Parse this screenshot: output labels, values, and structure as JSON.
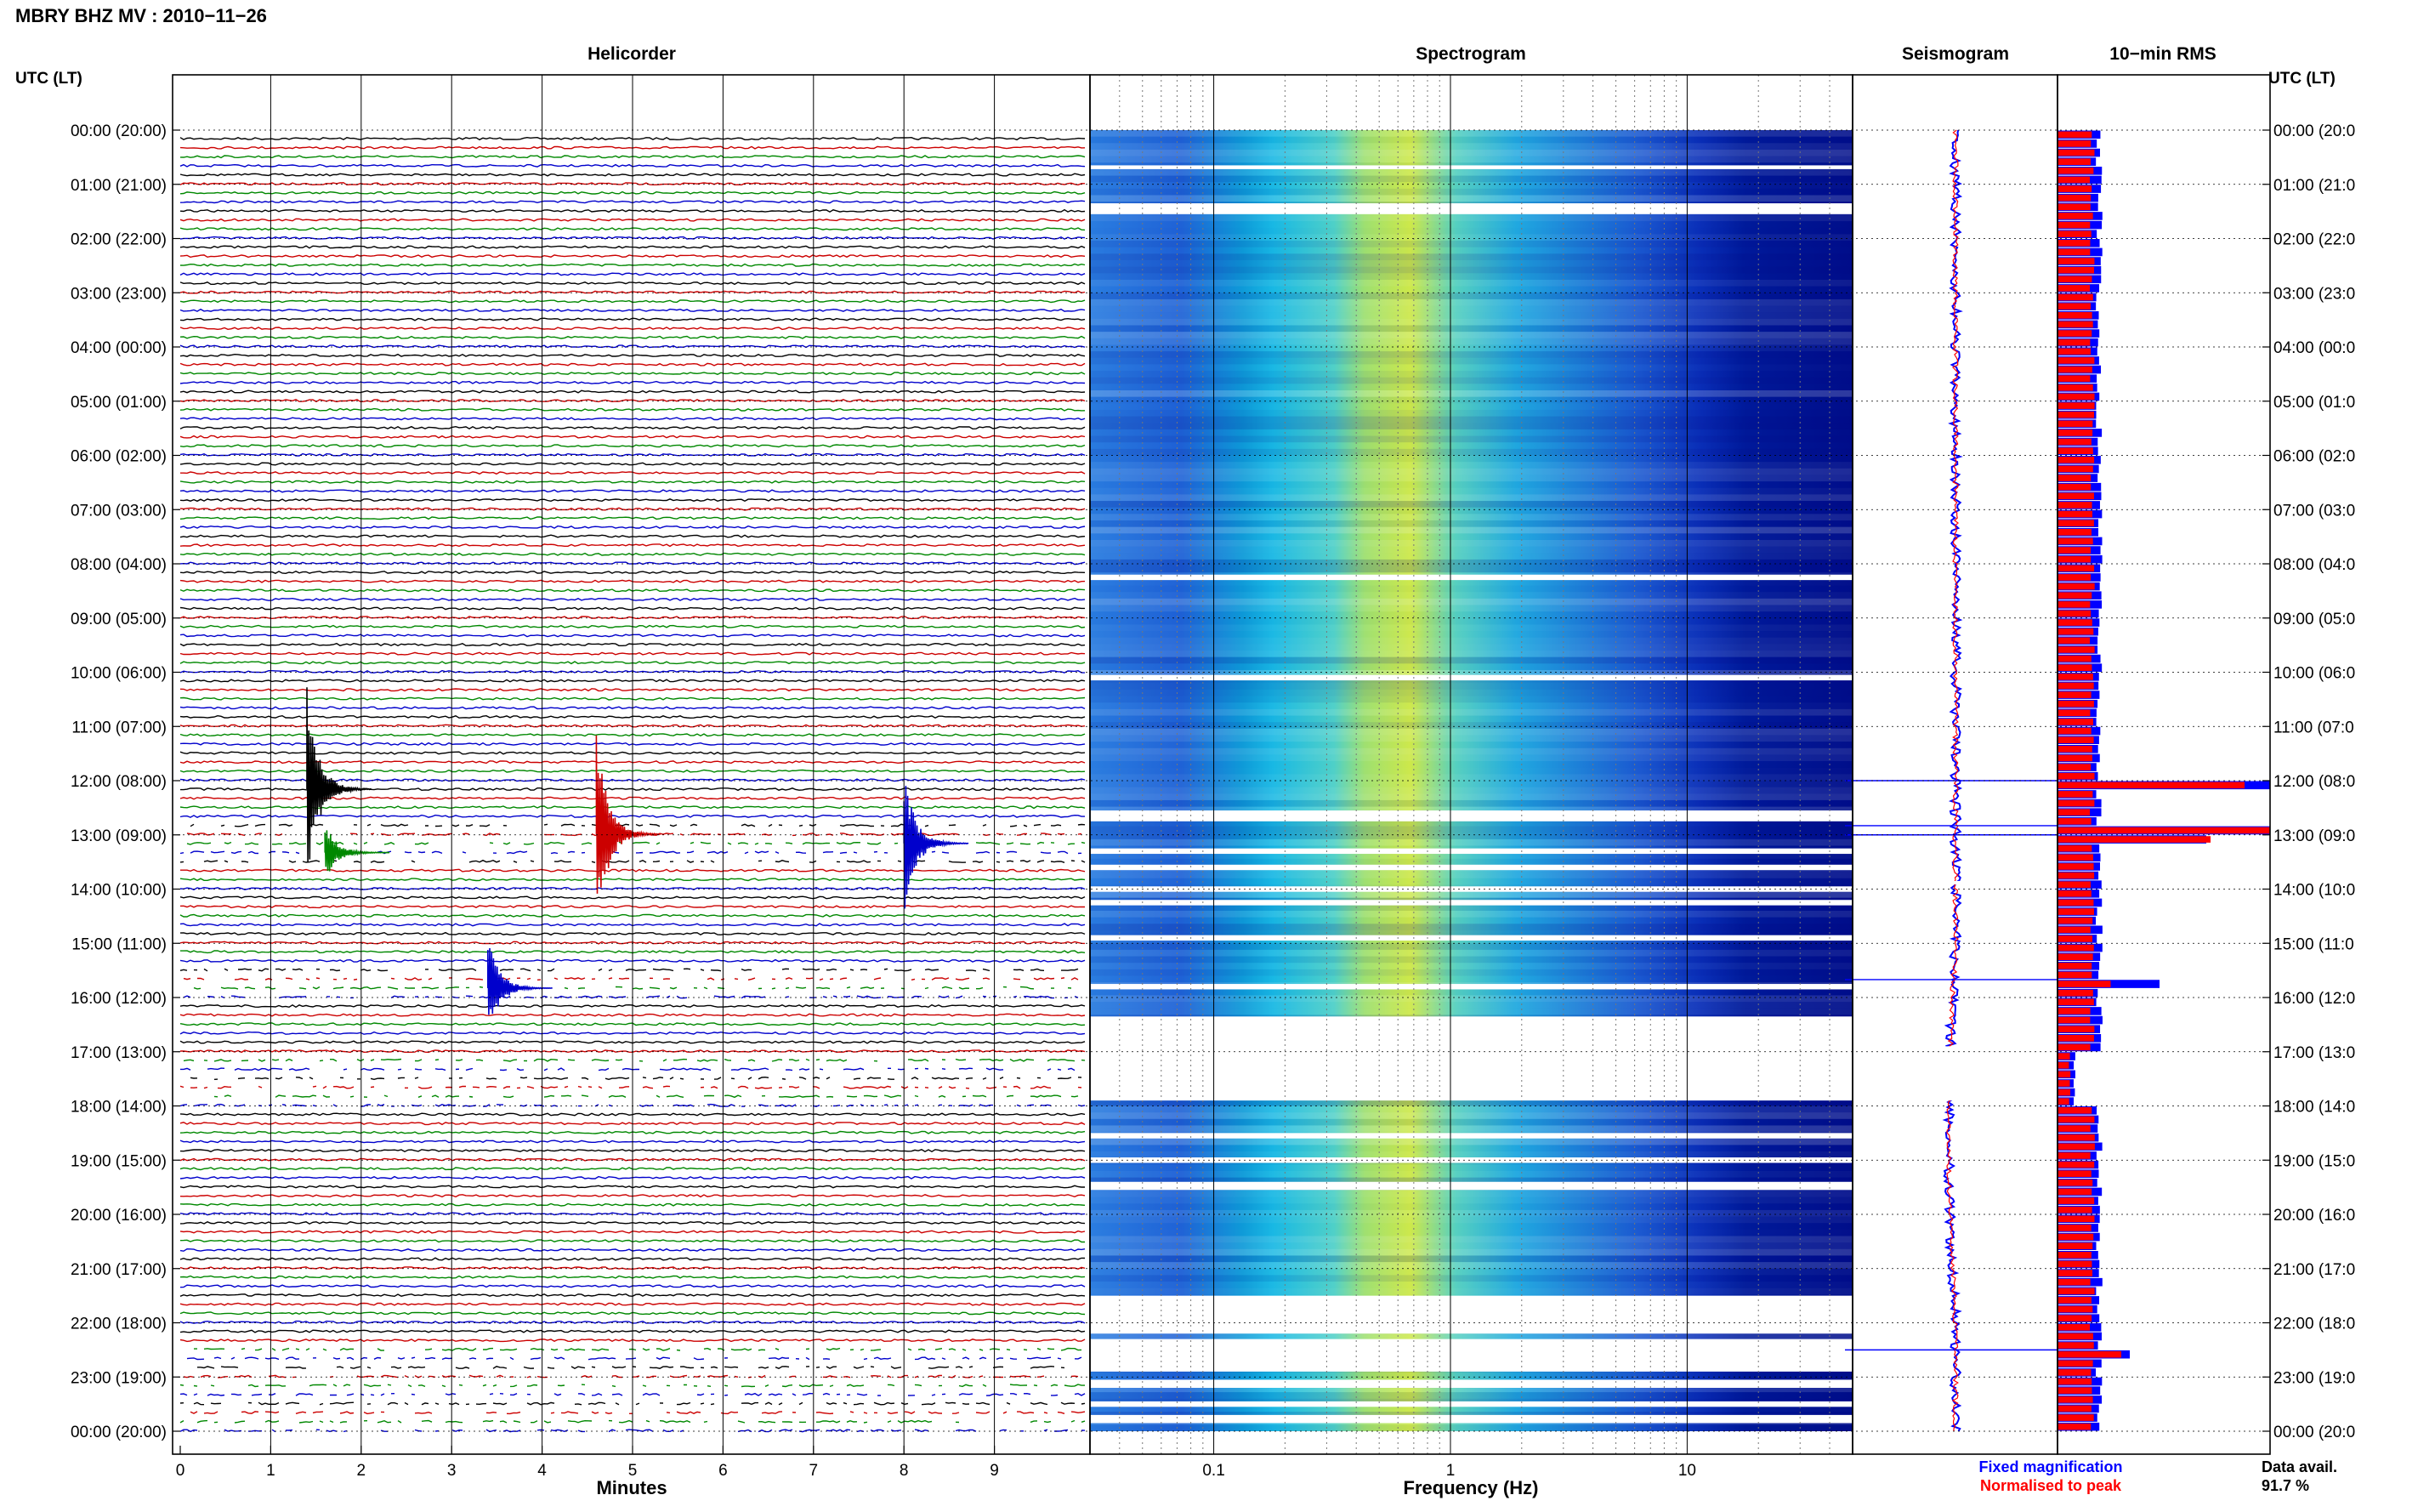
{
  "title": "MBRY BHZ MV : 2010−11−26",
  "time_axis_label": "UTC (LT)",
  "time_labels": [
    "00:00 (20:00)",
    "01:00 (21:00)",
    "02:00 (22:00)",
    "03:00 (23:00)",
    "04:00 (00:00)",
    "05:00 (01:00)",
    "06:00 (02:00)",
    "07:00 (03:00)",
    "08:00 (04:00)",
    "09:00 (05:00)",
    "10:00 (06:00)",
    "11:00 (07:00)",
    "12:00 (08:00)",
    "13:00 (09:00)",
    "14:00 (10:00)",
    "15:00 (11:00)",
    "16:00 (12:00)",
    "17:00 (13:00)",
    "18:00 (14:00)",
    "19:00 (15:00)",
    "20:00 (16:00)",
    "21:00 (17:00)",
    "22:00 (18:00)",
    "23:00 (19:00)",
    "00:00 (20:00)"
  ],
  "time_labels_right": [
    "00:00 (20:0",
    "01:00 (21:0",
    "02:00 (22:0",
    "03:00 (23:0",
    "04:00 (00:0",
    "05:00 (01:0",
    "06:00 (02:0",
    "07:00 (03:0",
    "08:00 (04:0",
    "09:00 (05:0",
    "10:00 (06:0",
    "11:00 (07:0",
    "12:00 (08:0",
    "13:00 (09:0",
    "14:00 (10:0",
    "15:00 (11:0",
    "16:00 (12:0",
    "17:00 (13:0",
    "18:00 (14:0",
    "19:00 (15:0",
    "20:00 (16:0",
    "21:00 (17:0",
    "22:00 (18:0",
    "23:00 (19:0",
    "00:00 (20:0"
  ],
  "legend": {
    "fixed": "Fixed magnification",
    "normalised": "Normalised to peak"
  },
  "data_avail": {
    "label": "Data avail.",
    "value": "91.7 %"
  },
  "colors": {
    "trace_cycle": [
      "#000000",
      "#cc0000",
      "#008800",
      "#0000cc"
    ],
    "fixed": "#0000ff",
    "normalised": "#ff0000"
  },
  "chart_data": [
    {
      "type": "line",
      "title": "Helicorder",
      "xlabel": "Minutes",
      "xlim": [
        0,
        10
      ],
      "x_ticks": [
        "0",
        "1",
        "2",
        "3",
        "4",
        "5",
        "6",
        "7",
        "8",
        "9"
      ],
      "rows_per_hour": 6,
      "hours": 24,
      "events": [
        {
          "hour": 12.0,
          "minute": 1.4,
          "color_index": 0,
          "amp": 1.0
        },
        {
          "hour": 12.83,
          "minute": 4.6,
          "color_index": 1,
          "amp": 1.0
        },
        {
          "hour": 13.0,
          "minute": 8.0,
          "color_index": 3,
          "amp": 0.7
        },
        {
          "hour": 13.17,
          "minute": 1.6,
          "color_index": 2,
          "amp": 0.3
        },
        {
          "hour": 15.67,
          "minute": 3.4,
          "color_index": 3,
          "amp": 0.5
        }
      ]
    },
    {
      "type": "heatmap",
      "title": "Spectrogram",
      "xlabel": "Frequency (Hz)",
      "x_scale": "log",
      "xlim": [
        0.03,
        50
      ],
      "x_ticks": [
        "0.1",
        "1",
        "10"
      ]
    },
    {
      "type": "line",
      "title": "Seismogram",
      "series": [
        {
          "name": "Fixed magnification"
        },
        {
          "name": "Normalised to peak"
        }
      ]
    },
    {
      "type": "bar",
      "title": "10−min RMS",
      "orientation": "horizontal",
      "spikes": [
        {
          "hour": 12.0,
          "fixed": 1.0,
          "normalised": 0.88
        },
        {
          "hour": 12.83,
          "fixed": 1.0,
          "normalised": 1.0
        },
        {
          "hour": 13.0,
          "fixed": 0.7,
          "normalised": 0.72
        },
        {
          "hour": 15.67,
          "fixed": 0.48,
          "normalised": 0.25
        },
        {
          "hour": 22.5,
          "fixed": 0.34,
          "normalised": 0.3
        }
      ]
    }
  ]
}
